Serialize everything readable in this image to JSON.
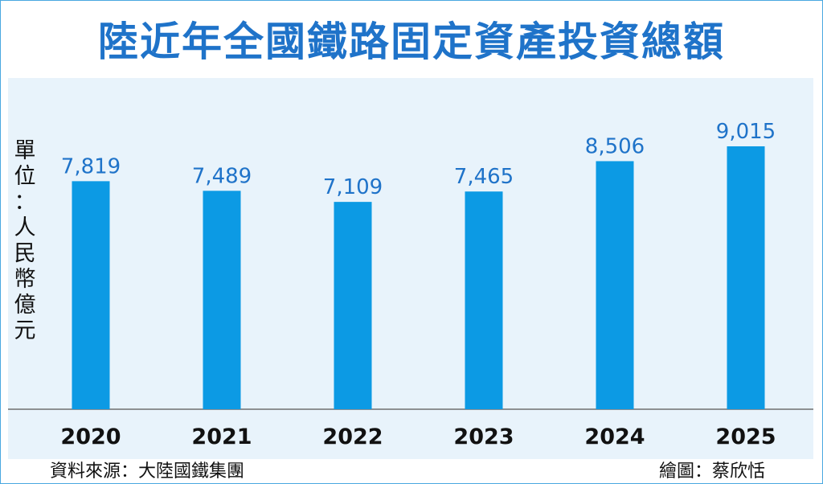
{
  "title": "陸近年全國鐵路固定資產投資總額",
  "unit_label": "單位：人民幣億元",
  "source": "資料來源：大陸國鐵集團",
  "credit": "繪圖：蔡欣恬",
  "colors": {
    "bar": "#0c9ae4",
    "title": "#1f73c9",
    "value_label": "#1f73c9",
    "panel": "#e8f3fb"
  },
  "chart_data": {
    "type": "bar",
    "title": "陸近年全國鐵路固定資產投資總額",
    "ylabel": "單位：人民幣億元",
    "xlabel": "",
    "categories": [
      "2020",
      "2021",
      "2022",
      "2023",
      "2024",
      "2025"
    ],
    "values": [
      7819,
      7489,
      7109,
      7465,
      8506,
      9015
    ],
    "value_labels": [
      "7,819",
      "7,489",
      "7,109",
      "7,465",
      "8,506",
      "9,015"
    ],
    "ylim": [
      0,
      10200
    ],
    "grid": false,
    "legend": "none"
  }
}
